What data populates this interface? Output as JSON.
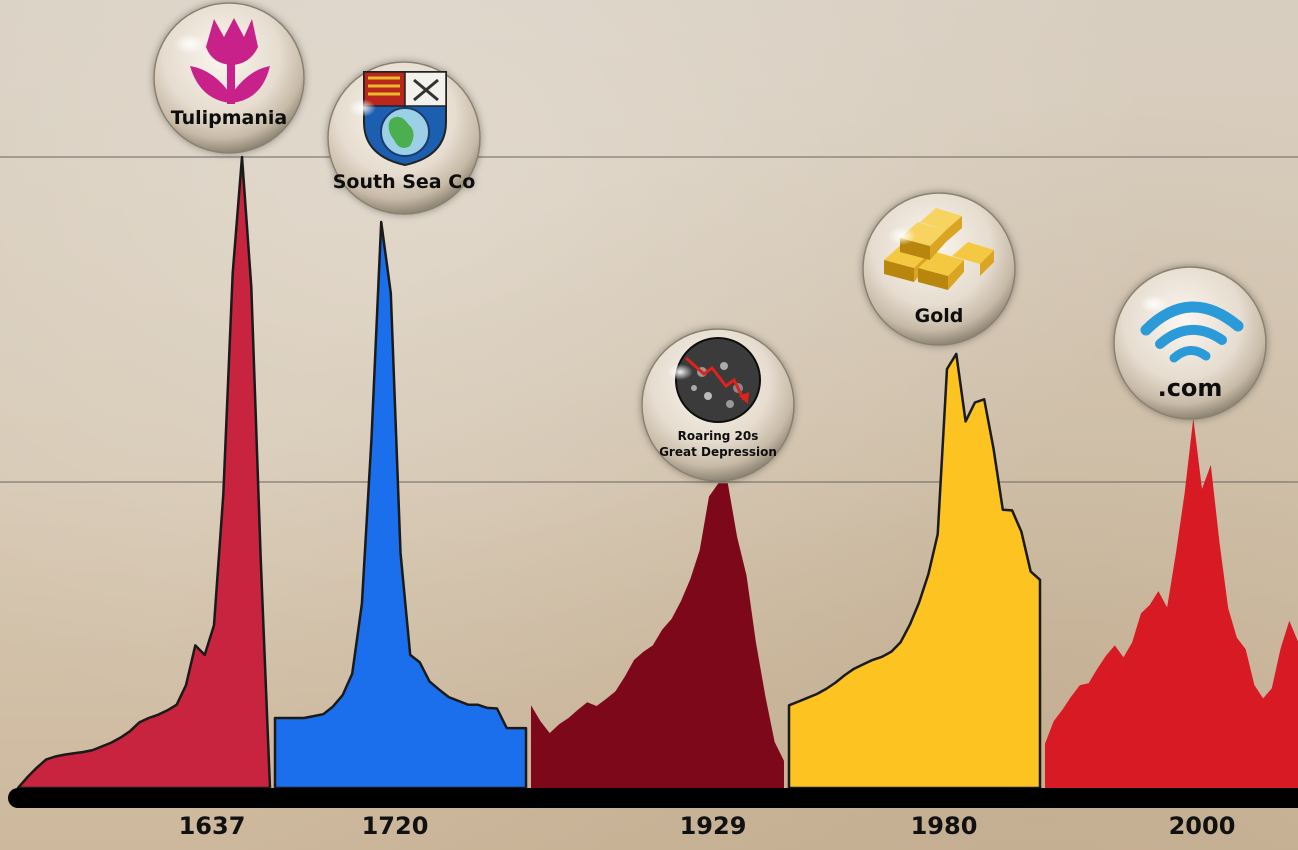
{
  "chart_data": {
    "type": "area",
    "title": "",
    "xlabel": "",
    "ylabel": "",
    "grid": "horizontal",
    "bubbles": [
      {
        "label": "Tulipmania",
        "icon": "tulip-icon",
        "color": "#c8218a"
      },
      {
        "label": "South Sea Co",
        "icon": "coat-of-arms-icon",
        "color": "#1d5fb0"
      },
      {
        "label_lines": [
          "Roaring 20s",
          "Great Depression"
        ],
        "icon": "crowd-crash-icon",
        "color": "#333333"
      },
      {
        "label": "Gold",
        "icon": "gold-bars-icon",
        "color": "#c89a1c"
      },
      {
        "label": ".com",
        "icon": "wifi-icon",
        "color": "#2a9ad8"
      }
    ],
    "x_tick_labels": [
      "1637",
      "1720",
      "1929",
      "1980",
      "2000"
    ],
    "series": [
      {
        "name": "Tulipmania",
        "year": "1637",
        "color": "#c8243f",
        "values": [
          0.0,
          1.7,
          3.2,
          4.5,
          5.0,
          5.3,
          5.5,
          5.7,
          6.0,
          6.6,
          7.2,
          8.0,
          9.0,
          10.4,
          11.1,
          11.6,
          12.3,
          13.2,
          16.3,
          22.6,
          21.1,
          25.8,
          46.5,
          81.6,
          100,
          79.4,
          36.4,
          0.0
        ],
        "stroke": true
      },
      {
        "name": "South Sea Co",
        "year": "1720",
        "color": "#1c6fec",
        "values": [
          11.1,
          11.1,
          11.1,
          11.1,
          11.4,
          11.7,
          12.9,
          14.7,
          18.1,
          29.2,
          55.4,
          89.7,
          78.4,
          37.3,
          21.1,
          19.9,
          16.9,
          15.6,
          14.4,
          13.8,
          13.2,
          13.2,
          12.7,
          12.6,
          9.5,
          9.5,
          9.5
        ],
        "stroke": true
      },
      {
        "name": "Roaring 20s Great Depression",
        "year": "1929",
        "color": "#7c0819",
        "values": [
          13.1,
          10.6,
          8.7,
          10.1,
          11.1,
          12.4,
          13.6,
          13.0,
          14.1,
          15.3,
          17.6,
          20.3,
          21.6,
          22.6,
          25.1,
          26.8,
          29.6,
          33.1,
          37.7,
          46.2,
          48.3,
          48.3,
          39.8,
          33.7,
          23.1,
          14.6,
          7.3,
          4.3
        ],
        "stroke": false
      },
      {
        "name": "Gold",
        "year": "1980",
        "color": "#fdc320",
        "values": [
          13.1,
          13.7,
          14.3,
          14.9,
          15.7,
          16.7,
          17.9,
          18.9,
          19.6,
          20.3,
          20.8,
          21.6,
          23.1,
          25.9,
          29.4,
          33.9,
          40.2,
          66.4,
          68.8,
          58.1,
          61.1,
          61.6,
          53.8,
          44.1,
          44.0,
          40.6,
          34.3,
          33.0
        ],
        "stroke": true
      },
      {
        "name": ".com",
        "year": "2000",
        "color": "#d81a25",
        "values": [
          7.0,
          10.6,
          12.4,
          14.5,
          16.3,
          16.6,
          18.9,
          21.0,
          22.6,
          20.7,
          23.1,
          27.7,
          29.0,
          31.2,
          28.6,
          37.2,
          46.7,
          58.6,
          47.4,
          51.2,
          38.9,
          28.5,
          23.8,
          22.0,
          16.3,
          14.2,
          15.8,
          22.1,
          26.5,
          23.2
        ],
        "stroke": false
      }
    ]
  }
}
